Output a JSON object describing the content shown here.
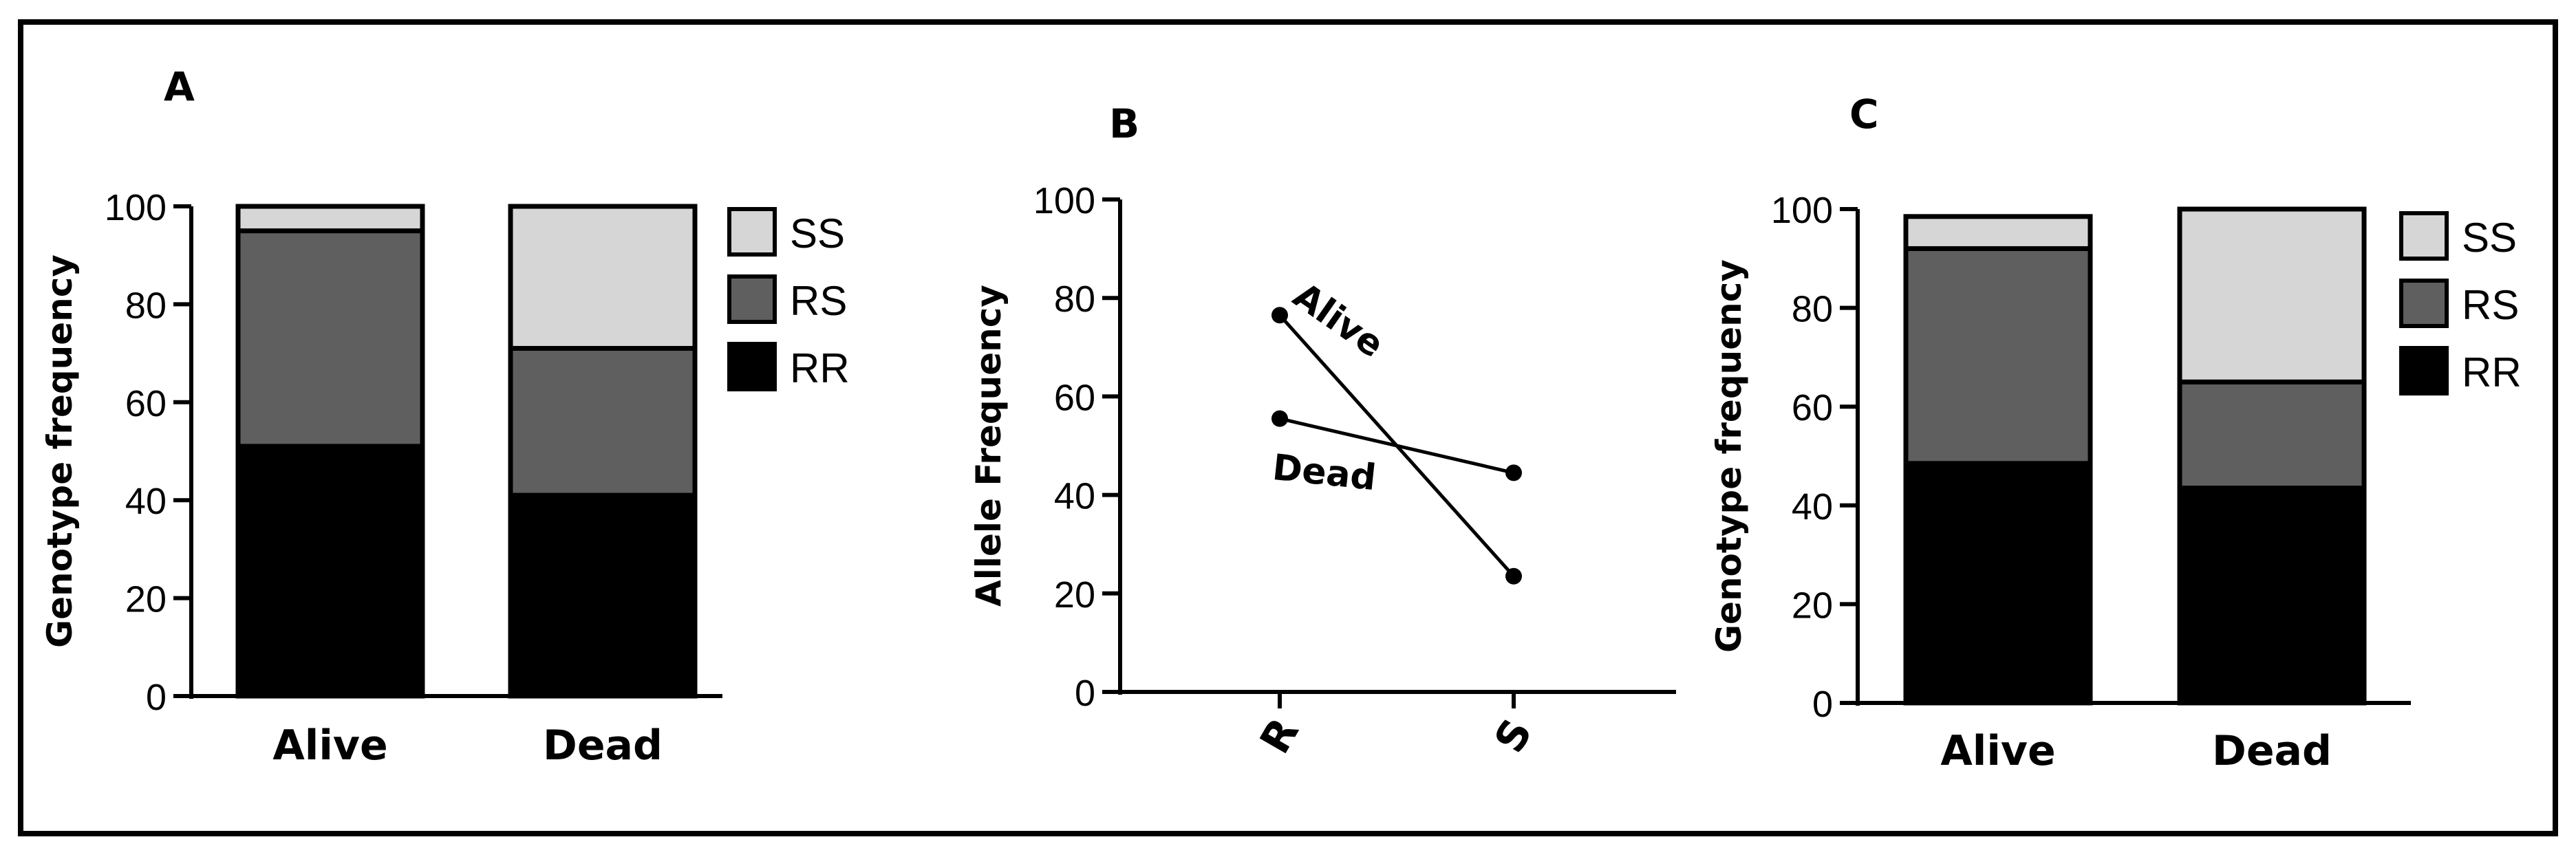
{
  "panels": {
    "a": {
      "letter": "A"
    },
    "b": {
      "letter": "B"
    },
    "c": {
      "letter": "C"
    }
  },
  "chart_data": [
    {
      "type": "bar",
      "stacked": true,
      "panel": "A",
      "categories": [
        "Alive",
        "Dead"
      ],
      "series": [
        {
          "name": "RR",
          "values": [
            51,
            41
          ],
          "color": "#000000"
        },
        {
          "name": "RS",
          "values": [
            44,
            30
          ],
          "color": "#5f5f5f"
        },
        {
          "name": "SS",
          "values": [
            5,
            29
          ],
          "color": "#d6d6d6"
        }
      ],
      "ylabel": "Genotype frequency",
      "ylim": [
        0,
        100
      ],
      "yticks": [
        "0",
        "20",
        "40",
        "60",
        "80",
        "100"
      ],
      "legend": "right"
    },
    {
      "type": "line",
      "panel": "B",
      "x": [
        "R",
        "S"
      ],
      "series": [
        {
          "name": "Alive",
          "values": [
            76.5,
            23.5
          ]
        },
        {
          "name": "Dead",
          "values": [
            55.5,
            44.5
          ]
        }
      ],
      "ylabel": "Allele Frequency",
      "ylim": [
        0,
        100
      ],
      "yticks": [
        "0",
        "20",
        "40",
        "60",
        "80",
        "100"
      ]
    },
    {
      "type": "bar",
      "stacked": true,
      "panel": "C",
      "categories": [
        "Alive",
        "Dead"
      ],
      "series": [
        {
          "name": "RR",
          "values": [
            48.5,
            43.5
          ],
          "color": "#000000"
        },
        {
          "name": "RS",
          "values": [
            43.5,
            21.5
          ],
          "color": "#5f5f5f"
        },
        {
          "name": "SS",
          "values": [
            6.5,
            35
          ],
          "color": "#d6d6d6"
        }
      ],
      "ylabel": "Genotype frequency",
      "ylim": [
        0,
        100
      ],
      "yticks": [
        "0",
        "20",
        "40",
        "60",
        "80",
        "100"
      ],
      "legend": "right"
    }
  ]
}
